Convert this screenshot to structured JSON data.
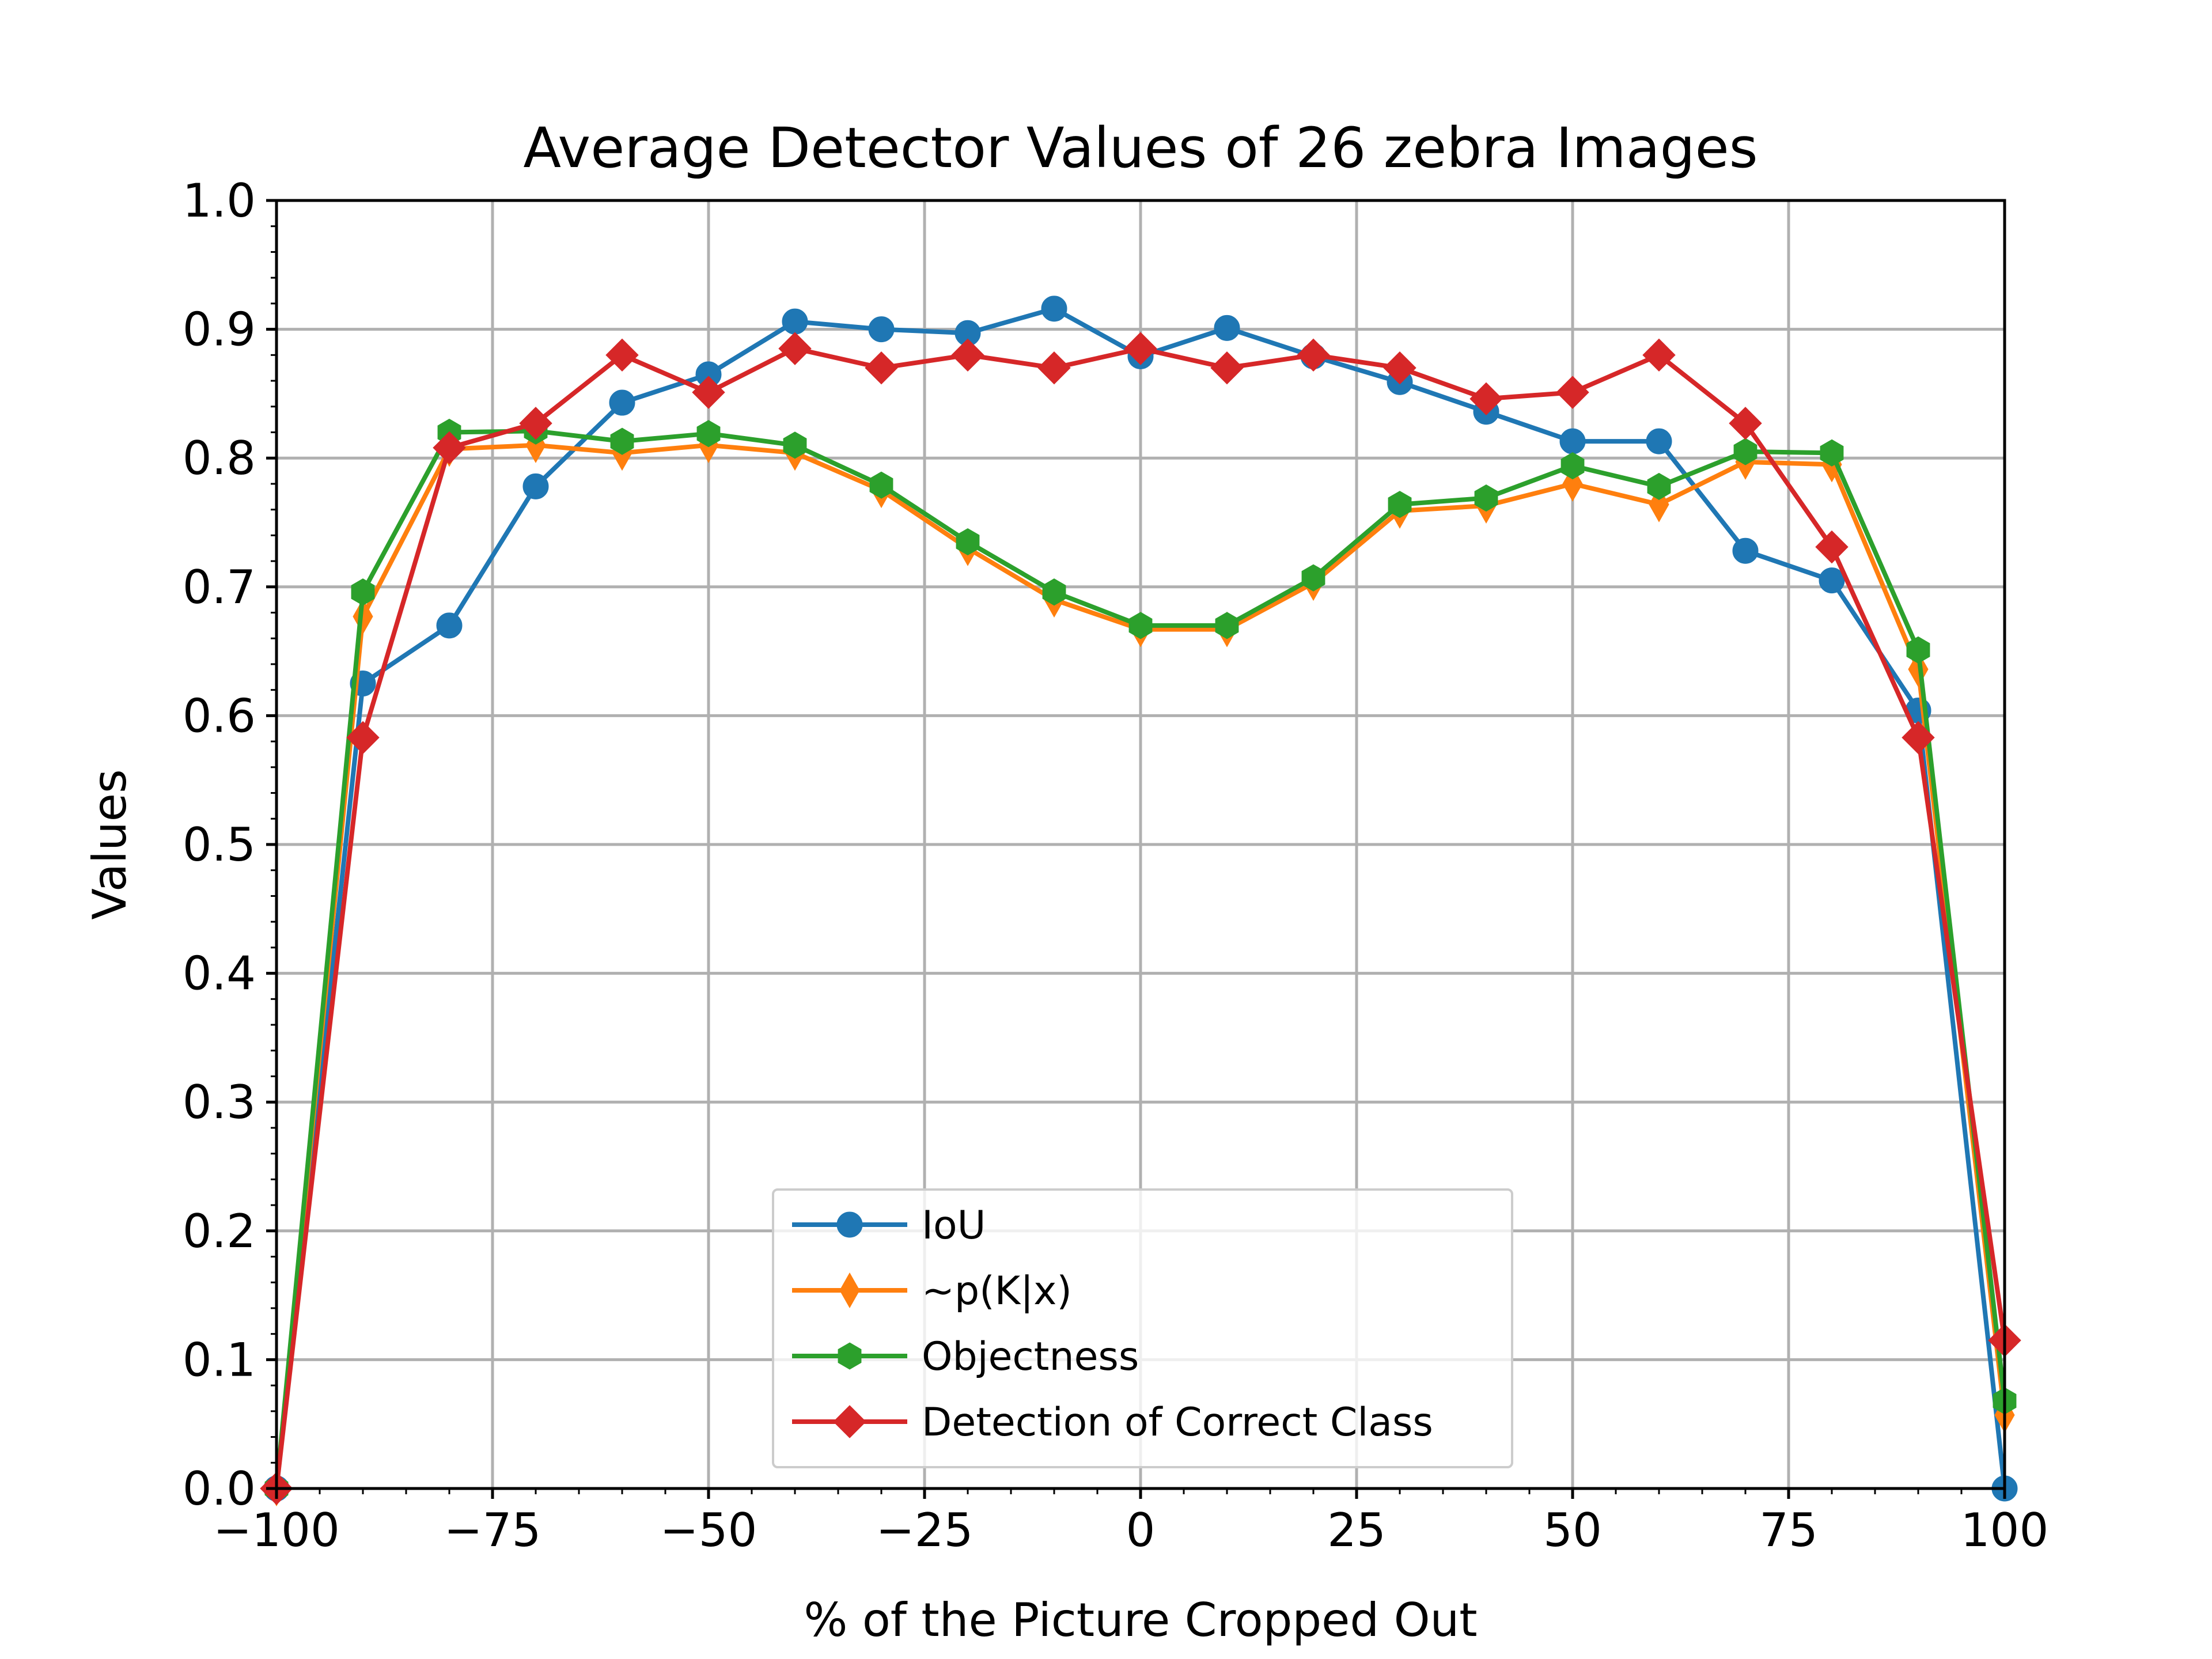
{
  "chart_data": {
    "type": "line",
    "title": "Average Detector Values of 26 zebra Images",
    "xlabel": "% of the Picture Cropped Out",
    "ylabel": "Values",
    "xlim": [
      -100,
      100
    ],
    "ylim": [
      0,
      1.0
    ],
    "grid": true,
    "legend_position": "bottom-center",
    "x_ticks": [
      "−100",
      "−75",
      "−50",
      "−25",
      "0",
      "25",
      "50",
      "75",
      "100"
    ],
    "y_ticks": [
      "0.0",
      "0.1",
      "0.2",
      "0.3",
      "0.4",
      "0.5",
      "0.6",
      "0.7",
      "0.8",
      "0.9",
      "1.0"
    ],
    "x": [
      -100,
      -90,
      -80,
      -70,
      -60,
      -50,
      -40,
      -30,
      -20,
      -10,
      0,
      10,
      20,
      30,
      40,
      50,
      60,
      70,
      80,
      90,
      100
    ],
    "series": [
      {
        "name": "IoU",
        "color": "#1f77b4",
        "marker": "circle",
        "values": [
          0.0,
          0.625,
          0.67,
          0.778,
          0.843,
          0.865,
          0.906,
          0.9,
          0.897,
          0.916,
          0.879,
          0.901,
          0.879,
          0.859,
          0.836,
          0.813,
          0.813,
          0.728,
          0.705,
          0.604,
          0.0
        ]
      },
      {
        "name": "~p(K|x)",
        "color": "#ff7f0e",
        "marker": "thin-diamond",
        "values": [
          0.0,
          0.677,
          0.807,
          0.81,
          0.804,
          0.81,
          0.804,
          0.775,
          0.73,
          0.69,
          0.667,
          0.667,
          0.703,
          0.759,
          0.763,
          0.78,
          0.764,
          0.797,
          0.795,
          0.636,
          0.057
        ]
      },
      {
        "name": "Objectness",
        "color": "#2ca02c",
        "marker": "hexagon",
        "values": [
          0.0,
          0.696,
          0.82,
          0.821,
          0.813,
          0.819,
          0.81,
          0.779,
          0.735,
          0.696,
          0.67,
          0.67,
          0.707,
          0.764,
          0.769,
          0.794,
          0.778,
          0.805,
          0.804,
          0.651,
          0.068
        ]
      },
      {
        "name": "Detection of Correct Class",
        "color": "#d62728",
        "marker": "diamond",
        "values": [
          0.0,
          0.583,
          0.808,
          0.827,
          0.88,
          0.851,
          0.885,
          0.87,
          0.88,
          0.87,
          0.885,
          0.87,
          0.88,
          0.87,
          0.846,
          0.851,
          0.88,
          0.827,
          0.731,
          0.583,
          0.115
        ]
      }
    ]
  }
}
